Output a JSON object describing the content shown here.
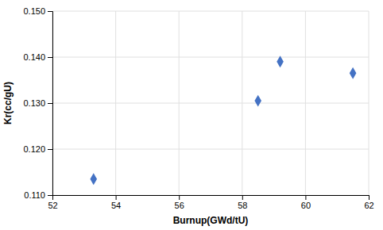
{
  "chart_data": {
    "type": "scatter",
    "x": [
      53.3,
      58.5,
      59.2,
      61.5
    ],
    "values": [
      0.1135,
      0.1305,
      0.139,
      0.1365
    ],
    "color": "#4472C4",
    "marker": "diamond",
    "xlabel": "Burnup(GWd/tU)",
    "ylabel": "Kr(cc/gU)",
    "xlim": [
      52,
      62
    ],
    "ylim": [
      0.11,
      0.15
    ],
    "xticks": [
      52,
      54,
      56,
      58,
      60,
      62
    ],
    "yticks": [
      {
        "value": 0.11,
        "label": "0.110"
      },
      {
        "value": 0.12,
        "label": "0.120"
      },
      {
        "value": 0.13,
        "label": "0.130"
      },
      {
        "value": 0.14,
        "label": "0.140"
      },
      {
        "value": 0.15,
        "label": "0.150"
      }
    ],
    "grid": true
  }
}
